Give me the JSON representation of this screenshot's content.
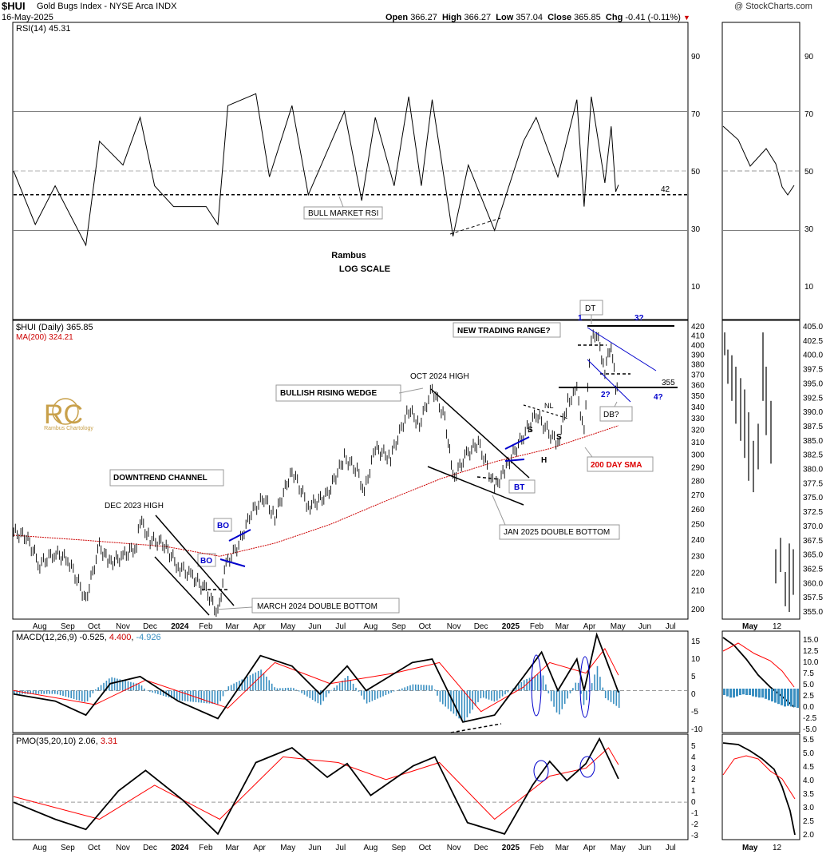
{
  "header": {
    "symbol": "$HUI",
    "name": "Gold Bugs Index - NYSE Arca INDX",
    "date": "16-May-2025",
    "copyright": "@ StockCharts.com",
    "open_label": "Open",
    "open": "366.27",
    "high_label": "High",
    "high": "366.27",
    "low_label": "Low",
    "low": "357.04",
    "close_label": "Close",
    "close": "365.85",
    "chg_label": "Chg",
    "chg": "-0.41 (-0.11%)"
  },
  "colors": {
    "price": "#000000",
    "sma": "#cc0000",
    "macd_line": "#000000",
    "signal_line": "#ff0000",
    "histogram": "#3a8fc1",
    "annotation_blue": "#0000cc",
    "annotation_red": "#dd0000",
    "gridline": "#999999",
    "logo_gold": "#c8a04a"
  },
  "panels": {
    "rsi": {
      "legend_name": "RSI(14)",
      "legend_value": "45.31",
      "watermark_line1": "Rambus",
      "watermark_line2": "LOG SCALE",
      "level_label": "42",
      "ticks": [
        "90",
        "70",
        "50",
        "30",
        "10"
      ]
    },
    "price": {
      "legend_symbol": "$HUI (Daily)",
      "legend_value": "365.85",
      "ma_label": "MA(200)",
      "ma_value": "324.21",
      "ticks": [
        "420",
        "410",
        "400",
        "390",
        "380",
        "370",
        "360",
        "350",
        "340",
        "330",
        "320",
        "310",
        "300",
        "290",
        "280",
        "270",
        "260",
        "250",
        "240",
        "230",
        "220",
        "210",
        "200"
      ],
      "right_ticks": [
        "405.0",
        "402.5",
        "400.0",
        "397.5",
        "395.0",
        "392.5",
        "390.0",
        "387.5",
        "385.0",
        "382.5",
        "380.0",
        "377.5",
        "375.0",
        "372.5",
        "370.0",
        "367.5",
        "365.0",
        "362.5",
        "360.0",
        "357.5",
        "355.0"
      ]
    },
    "macd": {
      "legend_name": "MACD(12,26,9)",
      "legend_macd": "-0.525",
      "legend_signal": "4.400",
      "legend_hist": "-4.926",
      "ticks": [
        "15",
        "10",
        "5",
        "0",
        "-5",
        "-10"
      ],
      "right_ticks": [
        "15.0",
        "12.5",
        "10.0",
        "7.5",
        "5.0",
        "2.5",
        "0.0",
        "-2.5",
        "-5.0"
      ]
    },
    "pmo": {
      "legend_name": "PMO(35,20,10)",
      "legend_pmo": "2.06",
      "legend_signal": "3.31",
      "ticks": [
        "5",
        "4",
        "3",
        "2",
        "1",
        "0",
        "-1",
        "-2",
        "-3"
      ],
      "right_ticks": [
        "5.5",
        "5.0",
        "4.5",
        "4.0",
        "3.5",
        "3.0",
        "2.5",
        "2.0"
      ]
    }
  },
  "x_axis": {
    "labels": [
      "Aug",
      "Sep",
      "Oct",
      "Nov",
      "Dec",
      "2024",
      "Feb",
      "Mar",
      "Apr",
      "May",
      "Jun",
      "Jul",
      "Aug",
      "Sep",
      "Oct",
      "Nov",
      "Dec",
      "2025",
      "Feb",
      "Mar",
      "Apr",
      "May",
      "Jun",
      "Jul"
    ],
    "right_labels": [
      "May",
      "12"
    ]
  },
  "logo": {
    "initials": "RC",
    "caption": "Rambus Chartology"
  },
  "annotations": {
    "bull_market_rsi": "BULL MARKET RSI",
    "downtrend_channel": "DOWNTREND CHANNEL",
    "dec_2023_high": "DEC 2023 HIGH",
    "bo1": "BO",
    "bo2": "BO",
    "march_2024_db": "MARCH 2024 DOUBLE BOTTOM",
    "bullish_rising_wedge": "BULLISH RISING WEDGE",
    "oct_2024_high": "OCT 2024 HIGH",
    "bt": "BT",
    "jan_2025_db": "JAN 2025 DOUBLE BOTTOM",
    "s1": "S",
    "s2": "S",
    "h": "H",
    "nl": "NL",
    "sma_200": "200 DAY SMA",
    "new_trading_range": "NEW TRADING RANGE?",
    "dt": "DT",
    "one": "1",
    "two": "2?",
    "three": "3?",
    "four": "4?",
    "level_355": "355",
    "db_q": "DB?"
  },
  "chart_data": {
    "type": "line",
    "title": "$HUI Gold Bugs Index - NYSE Arca INDX",
    "scale": "log",
    "x_range": [
      "2023-07-17",
      "2025-07-31"
    ],
    "price_ylim": [
      195,
      420
    ],
    "series": [
      {
        "name": "$HUI (Daily)",
        "points": [
          [
            "2023-07-17",
            245
          ],
          [
            "2023-07-31",
            242
          ],
          [
            "2023-08-15",
            225
          ],
          [
            "2023-08-31",
            232
          ],
          [
            "2023-09-15",
            228
          ],
          [
            "2023-09-29",
            212
          ],
          [
            "2023-10-05",
            205
          ],
          [
            "2023-10-20",
            236
          ],
          [
            "2023-10-31",
            226
          ],
          [
            "2023-11-15",
            230
          ],
          [
            "2023-11-30",
            236
          ],
          [
            "2023-12-04",
            253
          ],
          [
            "2023-12-15",
            240
          ],
          [
            "2023-12-29",
            238
          ],
          [
            "2024-01-15",
            224
          ],
          [
            "2024-01-31",
            218
          ],
          [
            "2024-02-15",
            210
          ],
          [
            "2024-02-28",
            198
          ],
          [
            "2024-03-08",
            225
          ],
          [
            "2024-03-22",
            237
          ],
          [
            "2024-04-05",
            258
          ],
          [
            "2024-04-19",
            268
          ],
          [
            "2024-05-01",
            255
          ],
          [
            "2024-05-20",
            288
          ],
          [
            "2024-06-07",
            262
          ],
          [
            "2024-06-28",
            270
          ],
          [
            "2024-07-17",
            298
          ],
          [
            "2024-07-31",
            288
          ],
          [
            "2024-08-08",
            272
          ],
          [
            "2024-08-20",
            305
          ],
          [
            "2024-09-06",
            298
          ],
          [
            "2024-09-26",
            338
          ],
          [
            "2024-10-08",
            325
          ],
          [
            "2024-10-22",
            357
          ],
          [
            "2024-11-05",
            330
          ],
          [
            "2024-11-14",
            282
          ],
          [
            "2024-11-29",
            300
          ],
          [
            "2024-12-12",
            310
          ],
          [
            "2024-12-30",
            275
          ],
          [
            "2025-01-10",
            288
          ],
          [
            "2025-01-31",
            316
          ],
          [
            "2025-02-14",
            334
          ],
          [
            "2025-02-28",
            318
          ],
          [
            "2025-03-10",
            309
          ],
          [
            "2025-03-21",
            345
          ],
          [
            "2025-03-31",
            355
          ],
          [
            "2025-04-08",
            318
          ],
          [
            "2025-04-16",
            405
          ],
          [
            "2025-04-22",
            412
          ],
          [
            "2025-05-01",
            375
          ],
          [
            "2025-05-08",
            402
          ],
          [
            "2025-05-13",
            358
          ],
          [
            "2025-05-16",
            366
          ]
        ]
      },
      {
        "name": "MA(200)",
        "points": [
          [
            "2023-07-17",
            243
          ],
          [
            "2023-10-01",
            240
          ],
          [
            "2024-01-01",
            236
          ],
          [
            "2024-03-01",
            230
          ],
          [
            "2024-05-01",
            238
          ],
          [
            "2024-07-01",
            250
          ],
          [
            "2024-09-01",
            266
          ],
          [
            "2024-11-01",
            282
          ],
          [
            "2025-01-01",
            295
          ],
          [
            "2025-03-01",
            305
          ],
          [
            "2025-05-16",
            324
          ]
        ]
      }
    ],
    "rsi": {
      "ylim": [
        0,
        100
      ],
      "levels": [
        70,
        50,
        30,
        42
      ],
      "last": 45.31,
      "points": [
        [
          "2023-07-17",
          50
        ],
        [
          "2023-08-10",
          32
        ],
        [
          "2023-09-01",
          45
        ],
        [
          "2023-10-05",
          25
        ],
        [
          "2023-10-20",
          60
        ],
        [
          "2023-11-15",
          52
        ],
        [
          "2023-12-04",
          68
        ],
        [
          "2023-12-20",
          45
        ],
        [
          "2024-01-10",
          38
        ],
        [
          "2024-02-15",
          38
        ],
        [
          "2024-02-28",
          32
        ],
        [
          "2024-03-10",
          72
        ],
        [
          "2024-04-10",
          76
        ],
        [
          "2024-04-25",
          48
        ],
        [
          "2024-05-20",
          72
        ],
        [
          "2024-06-07",
          42
        ],
        [
          "2024-07-17",
          70
        ],
        [
          "2024-08-05",
          40
        ],
        [
          "2024-08-20",
          68
        ],
        [
          "2024-09-10",
          45
        ],
        [
          "2024-09-26",
          75
        ],
        [
          "2024-10-10",
          45
        ],
        [
          "2024-10-22",
          74
        ],
        [
          "2024-11-14",
          28
        ],
        [
          "2024-12-01",
          52
        ],
        [
          "2024-12-30",
          30
        ],
        [
          "2025-01-31",
          60
        ],
        [
          "2025-02-14",
          68
        ],
        [
          "2025-03-10",
          48
        ],
        [
          "2025-03-31",
          74
        ],
        [
          "2025-04-08",
          38
        ],
        [
          "2025-04-16",
          75
        ],
        [
          "2025-05-01",
          46
        ],
        [
          "2025-05-08",
          65
        ],
        [
          "2025-05-13",
          43
        ],
        [
          "2025-05-16",
          45.31
        ]
      ]
    },
    "macd": {
      "ylim": [
        -12,
        17
      ],
      "last_macd": -0.525,
      "last_signal": 4.4,
      "last_hist": -4.926,
      "macd_points": [
        [
          "2023-07-17",
          -1
        ],
        [
          "2023-09-01",
          -3
        ],
        [
          "2023-10-05",
          -7
        ],
        [
          "2023-11-01",
          2
        ],
        [
          "2023-12-04",
          4
        ],
        [
          "2024-01-15",
          -3
        ],
        [
          "2024-02-28",
          -8
        ],
        [
          "2024-04-15",
          10
        ],
        [
          "2024-05-20",
          7
        ],
        [
          "2024-06-20",
          -1
        ],
        [
          "2024-07-20",
          7
        ],
        [
          "2024-08-10",
          0
        ],
        [
          "2024-09-30",
          8
        ],
        [
          "2024-10-22",
          9
        ],
        [
          "2024-11-25",
          -9
        ],
        [
          "2024-12-30",
          -7
        ],
        [
          "2025-01-31",
          4
        ],
        [
          "2025-02-20",
          11
        ],
        [
          "2025-03-10",
          0
        ],
        [
          "2025-03-31",
          9
        ],
        [
          "2025-04-08",
          0
        ],
        [
          "2025-04-22",
          16
        ],
        [
          "2025-05-16",
          -0.525
        ]
      ],
      "signal_points": [
        [
          "2023-07-17",
          0
        ],
        [
          "2023-10-15",
          -4
        ],
        [
          "2023-12-10",
          3
        ],
        [
          "2024-03-10",
          -5
        ],
        [
          "2024-05-01",
          8
        ],
        [
          "2024-07-01",
          2
        ],
        [
          "2024-09-10",
          5
        ],
        [
          "2024-10-30",
          8
        ],
        [
          "2024-12-15",
          -6
        ],
        [
          "2025-01-31",
          1
        ],
        [
          "2025-03-01",
          8
        ],
        [
          "2025-04-10",
          5
        ],
        [
          "2025-05-01",
          12
        ],
        [
          "2025-05-16",
          4.4
        ]
      ]
    },
    "pmo": {
      "ylim": [
        -3.3,
        6
      ],
      "last_pmo": 2.06,
      "last_signal": 3.31,
      "pmo_points": [
        [
          "2023-07-17",
          0
        ],
        [
          "2023-09-01",
          -1.5
        ],
        [
          "2023-10-05",
          -2.4
        ],
        [
          "2023-11-10",
          1
        ],
        [
          "2023-12-10",
          2.8
        ],
        [
          "2024-01-20",
          0.2
        ],
        [
          "2024-02-28",
          -2.8
        ],
        [
          "2024-04-10",
          3.5
        ],
        [
          "2024-05-20",
          4.8
        ],
        [
          "2024-06-28",
          2.2
        ],
        [
          "2024-07-20",
          3.4
        ],
        [
          "2024-08-15",
          0.6
        ],
        [
          "2024-10-01",
          3.2
        ],
        [
          "2024-10-25",
          4
        ],
        [
          "2024-11-30",
          -1.8
        ],
        [
          "2025-01-10",
          -2.8
        ],
        [
          "2025-02-10",
          1.5
        ],
        [
          "2025-03-01",
          3.6
        ],
        [
          "2025-03-20",
          1.9
        ],
        [
          "2025-04-10",
          3.4
        ],
        [
          "2025-04-25",
          5.6
        ],
        [
          "2025-05-16",
          2.06
        ]
      ],
      "signal_points": [
        [
          "2023-07-17",
          0.5
        ],
        [
          "2023-10-20",
          -1.5
        ],
        [
          "2023-12-20",
          1.5
        ],
        [
          "2024-03-01",
          -1.5
        ],
        [
          "2024-05-10",
          4
        ],
        [
          "2024-07-10",
          3.5
        ],
        [
          "2024-09-01",
          2
        ],
        [
          "2024-10-30",
          3.5
        ],
        [
          "2024-12-30",
          -1.5
        ],
        [
          "2025-03-01",
          2.3
        ],
        [
          "2025-04-10",
          3
        ],
        [
          "2025-05-05",
          4.8
        ],
        [
          "2025-05-16",
          3.31
        ]
      ]
    }
  }
}
